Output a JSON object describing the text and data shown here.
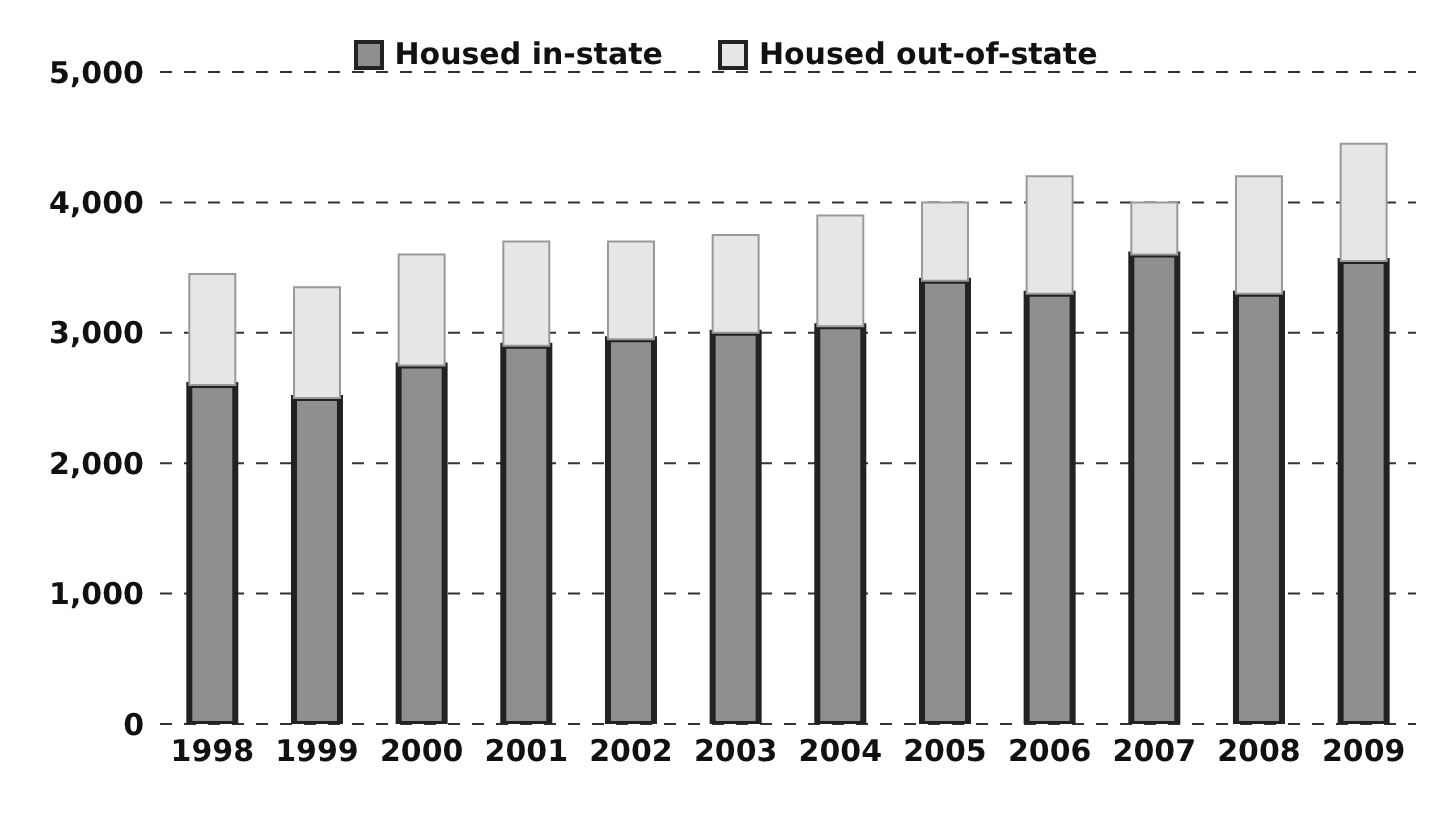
{
  "chart_data": {
    "type": "bar",
    "stacked": true,
    "categories": [
      "1998",
      "1999",
      "2000",
      "2001",
      "2002",
      "2003",
      "2004",
      "2005",
      "2006",
      "2007",
      "2008",
      "2009"
    ],
    "series": [
      {
        "name": "Housed in-state",
        "color": "#8f8f8f",
        "values": [
          2600,
          2500,
          2750,
          2900,
          2950,
          3000,
          3050,
          3400,
          3300,
          3600,
          3300,
          3550
        ]
      },
      {
        "name": "Housed out-of-state",
        "color": "#e6e6e6",
        "values": [
          850,
          850,
          850,
          800,
          750,
          750,
          850,
          600,
          900,
          400,
          900,
          900
        ]
      }
    ],
    "ylim": [
      0,
      5000
    ],
    "yticks": [
      {
        "value": 0,
        "label": "0"
      },
      {
        "value": 1000,
        "label": "1,000"
      },
      {
        "value": 2000,
        "label": "2,000"
      },
      {
        "value": 3000,
        "label": "3,000"
      },
      {
        "value": 4000,
        "label": "4,000"
      },
      {
        "value": 5000,
        "label": "5,000"
      }
    ],
    "grid": "y",
    "legend": "top"
  }
}
